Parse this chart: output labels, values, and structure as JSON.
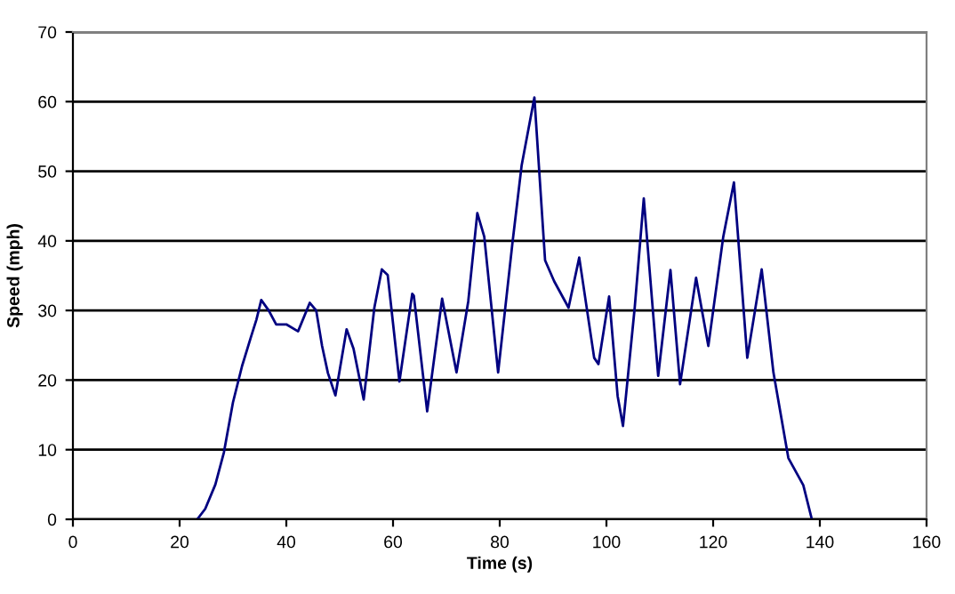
{
  "chart_data": {
    "type": "line",
    "xlabel": "Time (s)",
    "ylabel": "Speed (mph)",
    "xlim": [
      0,
      160
    ],
    "xticks": [
      0,
      20,
      40,
      60,
      80,
      100,
      120,
      140,
      160
    ],
    "ylim": [
      0,
      70
    ],
    "yticks": [
      0,
      10,
      20,
      30,
      40,
      50,
      60,
      70
    ],
    "grid": "y",
    "series": [
      {
        "color": "#000080",
        "x": [
          23.3,
          24.8,
          26.7,
          28.3,
          30,
          31.7,
          33.3,
          34.4,
          35.3,
          36.7,
          38.1,
          40,
          42.2,
          44.4,
          45.6,
          46.7,
          47.8,
          49.2,
          51.3,
          52.6,
          54.5,
          56.5,
          57.9,
          59,
          61.2,
          63.6,
          63.9,
          66.4,
          69.2,
          71.9,
          74.1,
          75.8,
          77.1,
          79.7,
          82.4,
          84.1,
          86.5,
          88.5,
          90.2,
          92.9,
          94.9,
          97.7,
          98.5,
          100.5,
          102.1,
          103.1,
          105.3,
          107,
          109.7,
          112,
          113.8,
          116.8,
          119.1,
          121.9,
          123.9,
          126.4,
          129.1,
          131.3,
          134.1,
          136.9,
          138.5
        ],
        "values": [
          0,
          1.5,
          5,
          9.6,
          16.8,
          22,
          26,
          28.7,
          31.5,
          30,
          28,
          28,
          27,
          31.1,
          30,
          24.9,
          21,
          17.8,
          27.3,
          24.5,
          17.2,
          30.4,
          35.9,
          35.1,
          19.8,
          32.4,
          32.1,
          15.5,
          31.7,
          21.1,
          31.3,
          44,
          40.6,
          21.1,
          39.8,
          50.8,
          60.6,
          37.2,
          34.2,
          30.4,
          37.6,
          23.2,
          22.3,
          32,
          17.7,
          13.4,
          30.4,
          46.1,
          20.6,
          35.8,
          19.4,
          34.7,
          24.9,
          40.6,
          48.4,
          23.2,
          35.9,
          21.1,
          8.8,
          4.9,
          0
        ]
      }
    ]
  }
}
